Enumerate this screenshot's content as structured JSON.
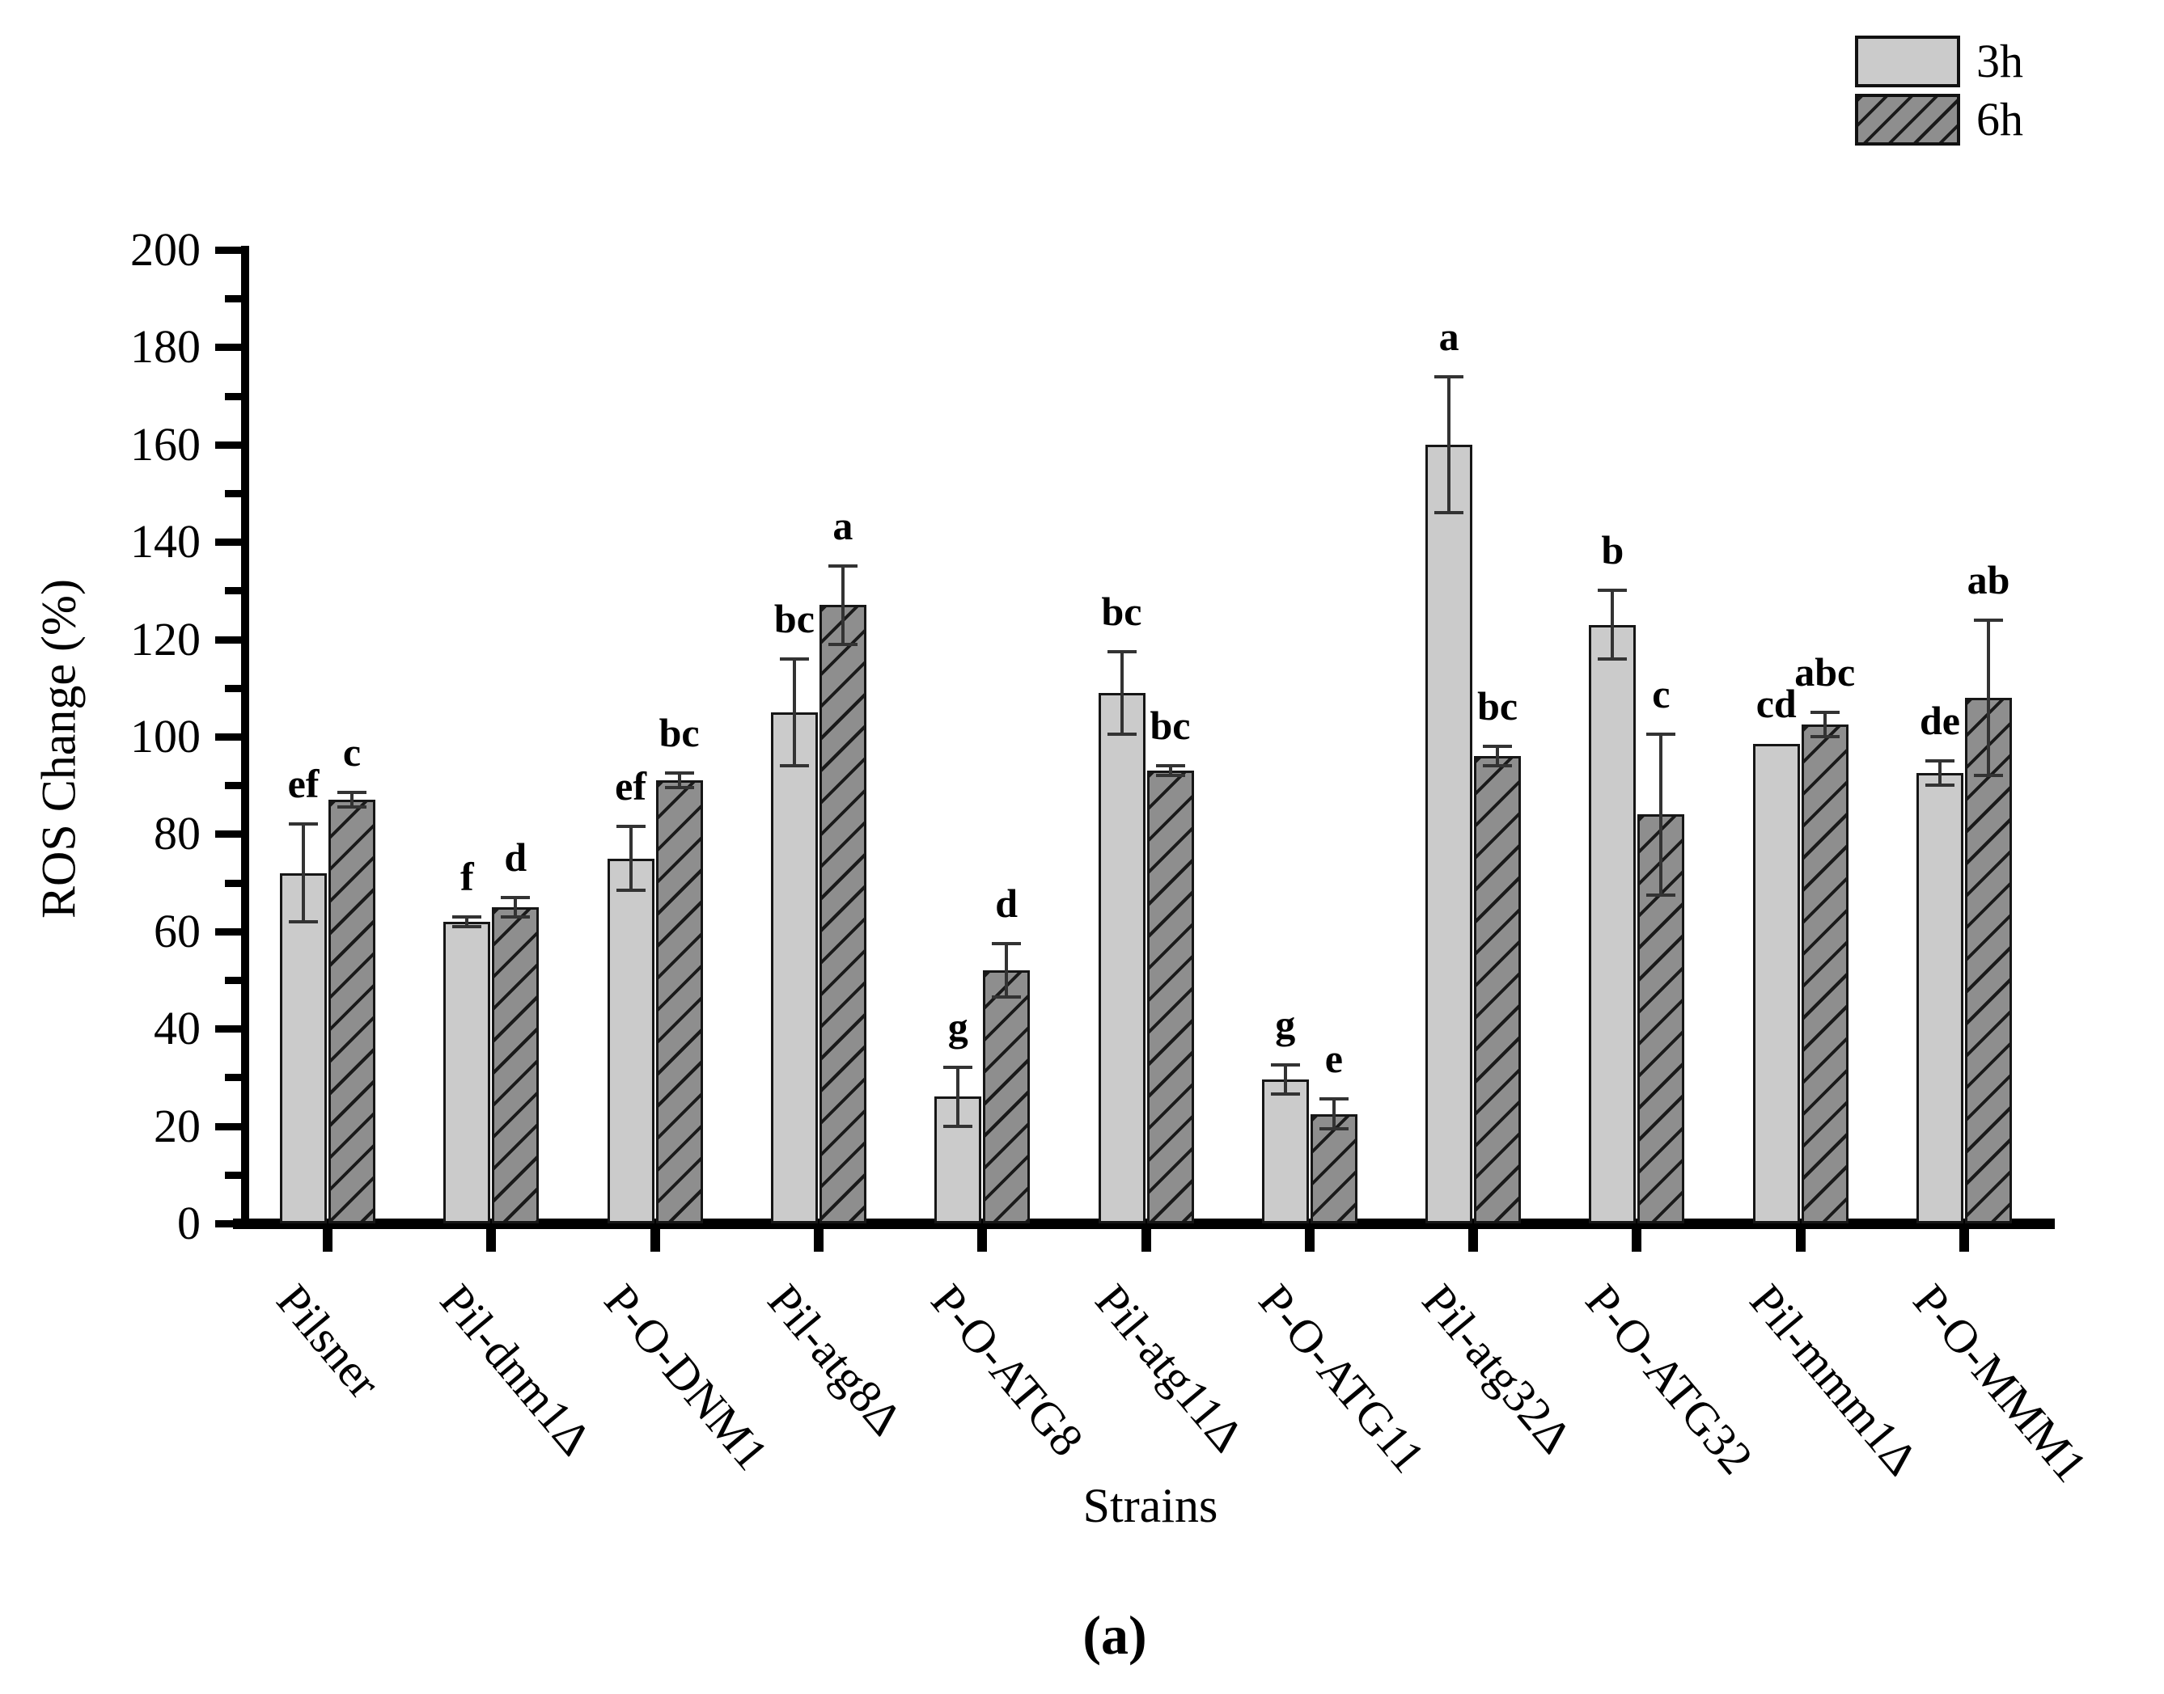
{
  "figure": {
    "caption": "(a)"
  },
  "chart_data": {
    "type": "bar",
    "title": "",
    "xlabel": "Strains",
    "ylabel": "ROS Change (%)",
    "ylim": [
      0,
      200
    ],
    "y_major_step": 20,
    "y_minor_step": 10,
    "grid": false,
    "legend_position": "top-right",
    "categories": [
      "Pilsner",
      "Pil-dnm1Δ",
      "P-O-DNM1",
      "Pil-atg8Δ",
      "P-O-ATG8",
      "Pil-atg11Δ",
      "P-O-ATG11",
      "Pil-atg32Δ",
      "P-O-ATG32",
      "Pil-mmm1Δ",
      "P-O-MMM1"
    ],
    "series": [
      {
        "name": "3h",
        "style": "solid-light-gray",
        "values": [
          72,
          62,
          75,
          105,
          26,
          109,
          29.5,
          160,
          123,
          98.5,
          92.5
        ],
        "errors": [
          10,
          1,
          6.5,
          11,
          6,
          8.5,
          3,
          14,
          7,
          0,
          2.5
        ],
        "sig_letters": [
          "ef",
          "f",
          "ef",
          "bc",
          "g",
          "bc",
          "g",
          "a",
          "b",
          "cd",
          "de"
        ]
      },
      {
        "name": "6h",
        "style": "hatched-dark-gray",
        "values": [
          87,
          65,
          91,
          127,
          52,
          93,
          22.5,
          96,
          84,
          102.5,
          108
        ],
        "errors": [
          1.5,
          2,
          1.5,
          8,
          5.5,
          1,
          3,
          2,
          16.5,
          2.5,
          16
        ],
        "sig_letters": [
          "c",
          "d",
          "bc",
          "a",
          "d",
          "bc",
          "e",
          "bc",
          "c",
          "abc",
          "ab"
        ]
      }
    ],
    "colors": {
      "series_3h": "#cbcbcb",
      "series_6h": "#8e8e8e",
      "hatch": "#1a1a1a",
      "bar_border": "#161616",
      "axis": "#000000",
      "error_bar": "#333333"
    }
  }
}
